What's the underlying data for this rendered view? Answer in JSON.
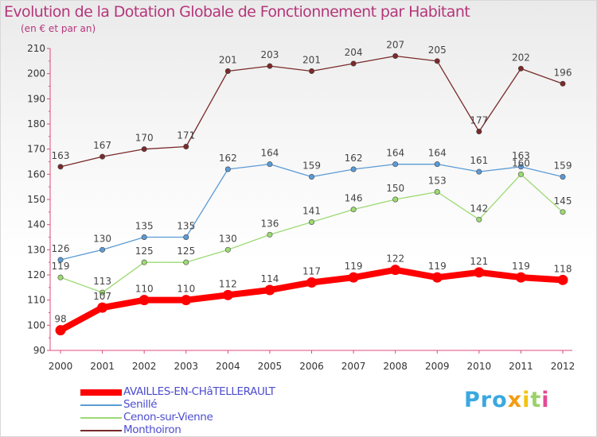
{
  "chart_data": {
    "type": "line",
    "title": "Evolution de la Dotation Globale de Fonctionnement par Habitant",
    "subtitle": "(en € et par an)",
    "xlabel": "",
    "ylabel": "",
    "x": [
      "2000",
      "2001",
      "2002",
      "2003",
      "2004",
      "2005",
      "2006",
      "2007",
      "2008",
      "2009",
      "2010",
      "2011",
      "2012"
    ],
    "ylim": [
      90,
      210
    ],
    "yticks": [
      90,
      100,
      110,
      120,
      130,
      140,
      150,
      160,
      170,
      180,
      190,
      200,
      210
    ],
    "grid": false,
    "legend_position": "bottom-left",
    "series": [
      {
        "name": "AVAILLES-EN-CHâTELLERAULT",
        "color": "#ff0000",
        "values": [
          98,
          107,
          110,
          110,
          112,
          114,
          117,
          119,
          122,
          119,
          121,
          119,
          118
        ]
      },
      {
        "name": "Senillé",
        "color": "#5b9bd5",
        "values": [
          126,
          130,
          135,
          135,
          162,
          164,
          159,
          162,
          164,
          164,
          161,
          163,
          159
        ]
      },
      {
        "name": "Cenon-sur-Vienne",
        "color": "#9dda73",
        "values": [
          119,
          113,
          125,
          125,
          130,
          136,
          141,
          146,
          150,
          153,
          142,
          160,
          145
        ]
      },
      {
        "name": "Monthoiron",
        "color": "#7a2a2a",
        "values": [
          163,
          167,
          170,
          171,
          201,
          203,
          201,
          204,
          207,
          205,
          177,
          202,
          196
        ]
      }
    ]
  },
  "branding": {
    "logo_letters": [
      "Pro",
      "x",
      "i",
      "t",
      "i"
    ]
  }
}
